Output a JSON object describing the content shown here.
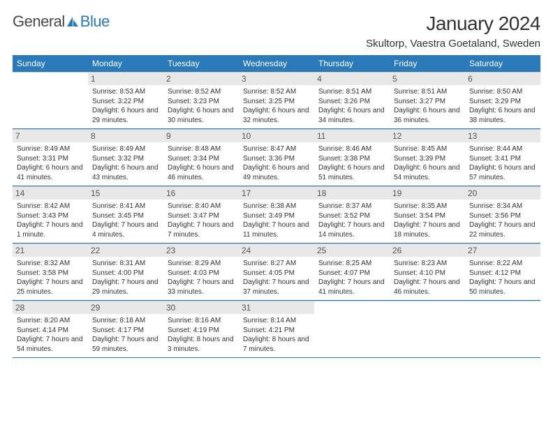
{
  "logo": {
    "text1": "General",
    "text2": "Blue"
  },
  "title": "January 2024",
  "location": "Skultorp, Vaestra Goetaland, Sweden",
  "colors": {
    "header_bg": "#2a7ab9",
    "header_text": "#ffffff",
    "daynum_bg": "#e8e8e8",
    "border": "#2a7ab9",
    "text": "#333333"
  },
  "weekday_labels": [
    "Sunday",
    "Monday",
    "Tuesday",
    "Wednesday",
    "Thursday",
    "Friday",
    "Saturday"
  ],
  "first_weekday_offset": 1,
  "days": [
    {
      "n": 1,
      "sunrise": "8:53 AM",
      "sunset": "3:22 PM",
      "daylight": "6 hours and 29 minutes."
    },
    {
      "n": 2,
      "sunrise": "8:52 AM",
      "sunset": "3:23 PM",
      "daylight": "6 hours and 30 minutes."
    },
    {
      "n": 3,
      "sunrise": "8:52 AM",
      "sunset": "3:25 PM",
      "daylight": "6 hours and 32 minutes."
    },
    {
      "n": 4,
      "sunrise": "8:51 AM",
      "sunset": "3:26 PM",
      "daylight": "6 hours and 34 minutes."
    },
    {
      "n": 5,
      "sunrise": "8:51 AM",
      "sunset": "3:27 PM",
      "daylight": "6 hours and 36 minutes."
    },
    {
      "n": 6,
      "sunrise": "8:50 AM",
      "sunset": "3:29 PM",
      "daylight": "6 hours and 38 minutes."
    },
    {
      "n": 7,
      "sunrise": "8:49 AM",
      "sunset": "3:31 PM",
      "daylight": "6 hours and 41 minutes."
    },
    {
      "n": 8,
      "sunrise": "8:49 AM",
      "sunset": "3:32 PM",
      "daylight": "6 hours and 43 minutes."
    },
    {
      "n": 9,
      "sunrise": "8:48 AM",
      "sunset": "3:34 PM",
      "daylight": "6 hours and 46 minutes."
    },
    {
      "n": 10,
      "sunrise": "8:47 AM",
      "sunset": "3:36 PM",
      "daylight": "6 hours and 49 minutes."
    },
    {
      "n": 11,
      "sunrise": "8:46 AM",
      "sunset": "3:38 PM",
      "daylight": "6 hours and 51 minutes."
    },
    {
      "n": 12,
      "sunrise": "8:45 AM",
      "sunset": "3:39 PM",
      "daylight": "6 hours and 54 minutes."
    },
    {
      "n": 13,
      "sunrise": "8:44 AM",
      "sunset": "3:41 PM",
      "daylight": "6 hours and 57 minutes."
    },
    {
      "n": 14,
      "sunrise": "8:42 AM",
      "sunset": "3:43 PM",
      "daylight": "7 hours and 1 minute."
    },
    {
      "n": 15,
      "sunrise": "8:41 AM",
      "sunset": "3:45 PM",
      "daylight": "7 hours and 4 minutes."
    },
    {
      "n": 16,
      "sunrise": "8:40 AM",
      "sunset": "3:47 PM",
      "daylight": "7 hours and 7 minutes."
    },
    {
      "n": 17,
      "sunrise": "8:38 AM",
      "sunset": "3:49 PM",
      "daylight": "7 hours and 11 minutes."
    },
    {
      "n": 18,
      "sunrise": "8:37 AM",
      "sunset": "3:52 PM",
      "daylight": "7 hours and 14 minutes."
    },
    {
      "n": 19,
      "sunrise": "8:35 AM",
      "sunset": "3:54 PM",
      "daylight": "7 hours and 18 minutes."
    },
    {
      "n": 20,
      "sunrise": "8:34 AM",
      "sunset": "3:56 PM",
      "daylight": "7 hours and 22 minutes."
    },
    {
      "n": 21,
      "sunrise": "8:32 AM",
      "sunset": "3:58 PM",
      "daylight": "7 hours and 25 minutes."
    },
    {
      "n": 22,
      "sunrise": "8:31 AM",
      "sunset": "4:00 PM",
      "daylight": "7 hours and 29 minutes."
    },
    {
      "n": 23,
      "sunrise": "8:29 AM",
      "sunset": "4:03 PM",
      "daylight": "7 hours and 33 minutes."
    },
    {
      "n": 24,
      "sunrise": "8:27 AM",
      "sunset": "4:05 PM",
      "daylight": "7 hours and 37 minutes."
    },
    {
      "n": 25,
      "sunrise": "8:25 AM",
      "sunset": "4:07 PM",
      "daylight": "7 hours and 41 minutes."
    },
    {
      "n": 26,
      "sunrise": "8:23 AM",
      "sunset": "4:10 PM",
      "daylight": "7 hours and 46 minutes."
    },
    {
      "n": 27,
      "sunrise": "8:22 AM",
      "sunset": "4:12 PM",
      "daylight": "7 hours and 50 minutes."
    },
    {
      "n": 28,
      "sunrise": "8:20 AM",
      "sunset": "4:14 PM",
      "daylight": "7 hours and 54 minutes."
    },
    {
      "n": 29,
      "sunrise": "8:18 AM",
      "sunset": "4:17 PM",
      "daylight": "7 hours and 59 minutes."
    },
    {
      "n": 30,
      "sunrise": "8:16 AM",
      "sunset": "4:19 PM",
      "daylight": "8 hours and 3 minutes."
    },
    {
      "n": 31,
      "sunrise": "8:14 AM",
      "sunset": "4:21 PM",
      "daylight": "8 hours and 7 minutes."
    }
  ],
  "labels": {
    "sunrise": "Sunrise:",
    "sunset": "Sunset:",
    "daylight": "Daylight:"
  }
}
